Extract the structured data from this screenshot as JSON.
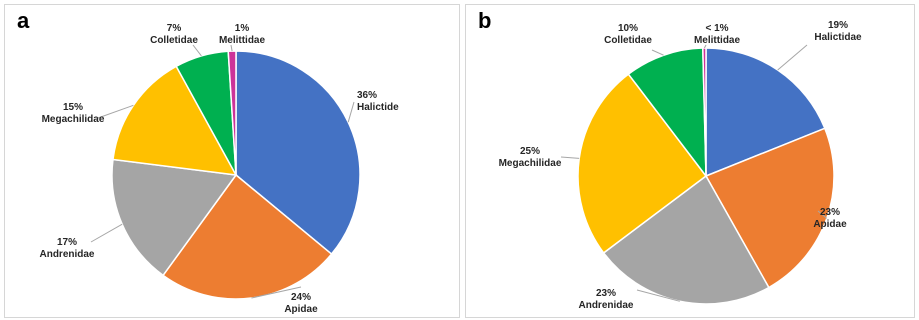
{
  "chart_data": [
    {
      "type": "pie",
      "panel": "a",
      "slices": [
        {
          "label": "Halictide",
          "pct_label": "36%",
          "value": 36,
          "color": "#4472C4"
        },
        {
          "label": "Apidae",
          "pct_label": "24%",
          "value": 24,
          "color": "#ED7D31"
        },
        {
          "label": "Andrenidae",
          "pct_label": "17%",
          "value": 17,
          "color": "#A5A5A5"
        },
        {
          "label": "Megachilidae",
          "pct_label": "15%",
          "value": 15,
          "color": "#FFC000"
        },
        {
          "label": "Colletidae",
          "pct_label": "7%",
          "value": 7,
          "color": "#00B050"
        },
        {
          "label": "Melittidae",
          "pct_label": "1%",
          "value": 1,
          "color": "#CC3399"
        }
      ]
    },
    {
      "type": "pie",
      "panel": "b",
      "slices": [
        {
          "label": "Halictidae",
          "pct_label": "19%",
          "value": 19,
          "color": "#4472C4"
        },
        {
          "label": "Apidae",
          "pct_label": "23%",
          "value": 23,
          "color": "#ED7D31"
        },
        {
          "label": "Andrenidae",
          "pct_label": "23%",
          "value": 23,
          "color": "#A5A5A5"
        },
        {
          "label": "Megachilidae",
          "pct_label": "25%",
          "value": 25,
          "color": "#FFC000"
        },
        {
          "label": "Colletidae",
          "pct_label": "10%",
          "value": 10,
          "color": "#00B050"
        },
        {
          "label": "Melittidae",
          "pct_label": "< 1%",
          "value": 0.4,
          "color": "#CC3399"
        }
      ]
    }
  ]
}
